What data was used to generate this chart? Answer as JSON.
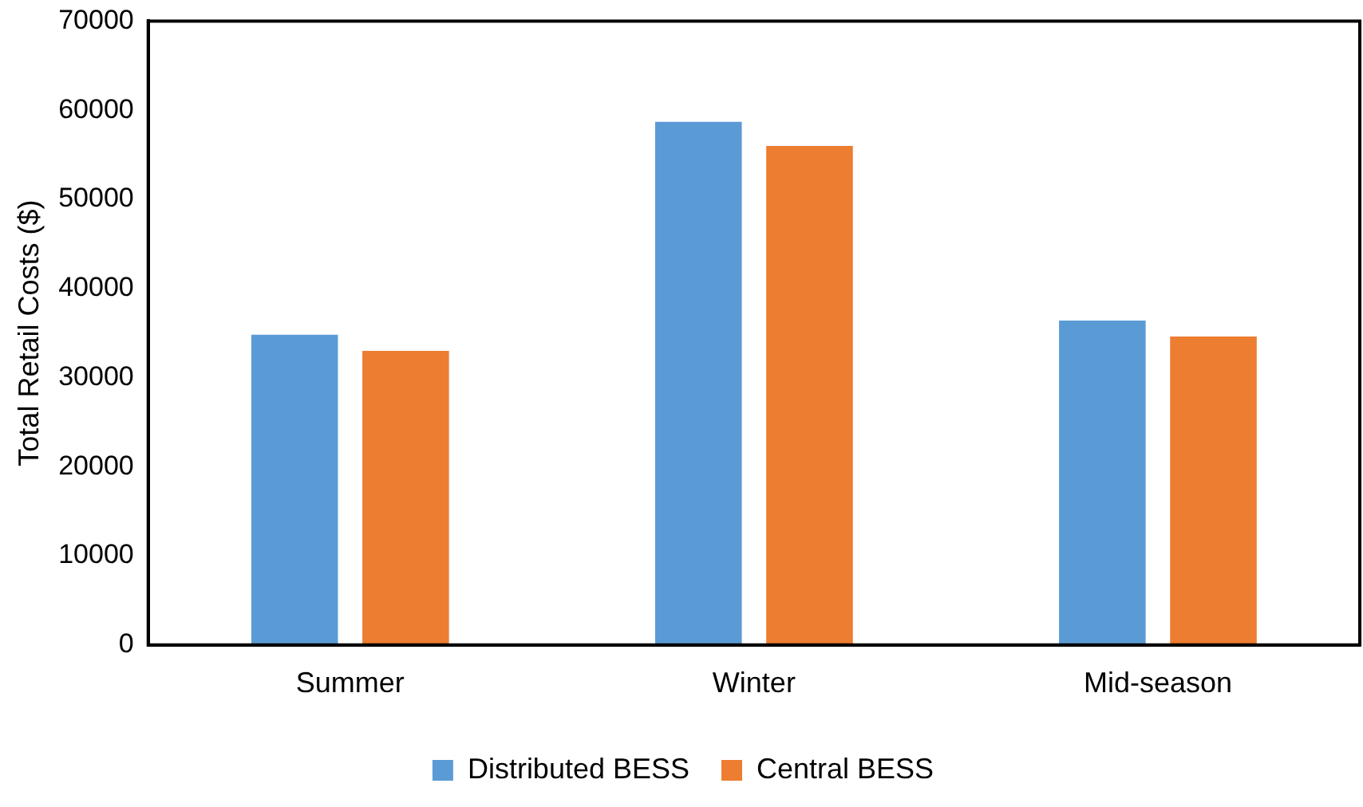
{
  "chart_data": {
    "type": "bar",
    "ylabel": "Total Retail Costs ($)",
    "categories": [
      "Summer",
      "Winter",
      "Mid-season"
    ],
    "series": [
      {
        "name": "Distributed BESS",
        "color": "#5b9bd5",
        "values": [
          34800,
          58700,
          36400
        ]
      },
      {
        "name": "Central BESS",
        "color": "#ed7d31",
        "values": [
          33000,
          56000,
          34600
        ]
      }
    ],
    "ylim": [
      0,
      70000
    ],
    "yticks": [
      0,
      10000,
      20000,
      30000,
      40000,
      50000,
      60000,
      70000
    ],
    "grid": false,
    "legend": "bottom"
  }
}
